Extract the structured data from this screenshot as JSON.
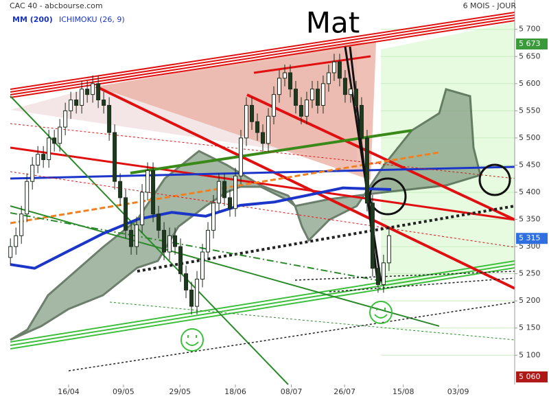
{
  "chart_data": {
    "type": "candlestick",
    "title": "CAC 40 - abcbourse.com",
    "period": "6 MOIS - JOUR",
    "annotation": "Mat",
    "indicators": [
      {
        "name": "MM (200)",
        "color": "#1a35c8"
      },
      {
        "name": "ICHIMOKU (26, 9)",
        "color": "#1a35c8"
      }
    ],
    "open": [
      5280,
      5300,
      5320,
      5360,
      5420,
      5450,
      5470,
      5460,
      5500,
      5490,
      5520,
      5550,
      5570,
      5560,
      5590,
      5580,
      5600,
      5570,
      5560,
      5510,
      5420,
      5390,
      5330,
      5300,
      5340,
      5400,
      5440,
      5360,
      5330,
      5290,
      5320,
      5300,
      5250,
      5220,
      5190,
      5240,
      5290,
      5330,
      5380,
      5420,
      5390,
      5370,
      5430,
      5500,
      5560,
      5530,
      5510,
      5490,
      5540,
      5580,
      5610,
      5620,
      5590,
      5560,
      5540,
      5570,
      5590,
      5560,
      5600,
      5620,
      5640,
      5610,
      5580,
      5590,
      5560,
      5500,
      5380,
      5260,
      5230,
      5270
    ],
    "high": [
      5315,
      5335,
      5375,
      5435,
      5465,
      5485,
      5485,
      5515,
      5515,
      5535,
      5565,
      5585,
      5585,
      5605,
      5605,
      5615,
      5615,
      5585,
      5575,
      5525,
      5435,
      5405,
      5345,
      5355,
      5415,
      5455,
      5455,
      5375,
      5345,
      5335,
      5335,
      5315,
      5265,
      5235,
      5255,
      5305,
      5345,
      5395,
      5435,
      5435,
      5405,
      5445,
      5515,
      5575,
      5575,
      5545,
      5525,
      5555,
      5595,
      5625,
      5635,
      5635,
      5605,
      5575,
      5585,
      5605,
      5605,
      5615,
      5635,
      5655,
      5655,
      5625,
      5605,
      5605,
      5575,
      5515,
      5395,
      5275,
      5285,
      5335
    ],
    "low": [
      5265,
      5285,
      5305,
      5345,
      5405,
      5435,
      5445,
      5445,
      5475,
      5475,
      5505,
      5535,
      5545,
      5545,
      5565,
      5565,
      5555,
      5545,
      5495,
      5405,
      5375,
      5315,
      5285,
      5285,
      5325,
      5385,
      5345,
      5315,
      5275,
      5275,
      5285,
      5235,
      5205,
      5175,
      5175,
      5225,
      5275,
      5315,
      5365,
      5375,
      5355,
      5355,
      5415,
      5485,
      5515,
      5495,
      5475,
      5475,
      5525,
      5565,
      5595,
      5575,
      5545,
      5525,
      5525,
      5555,
      5545,
      5545,
      5585,
      5605,
      5595,
      5565,
      5565,
      5545,
      5485,
      5365,
      5245,
      5215,
      5215,
      5255
    ],
    "close": [
      5300,
      5320,
      5360,
      5420,
      5450,
      5470,
      5460,
      5500,
      5490,
      5520,
      5550,
      5570,
      5560,
      5590,
      5580,
      5600,
      5570,
      5560,
      5510,
      5420,
      5390,
      5330,
      5300,
      5340,
      5400,
      5440,
      5360,
      5330,
      5290,
      5320,
      5300,
      5250,
      5220,
      5190,
      5240,
      5290,
      5330,
      5380,
      5420,
      5390,
      5370,
      5430,
      5500,
      5560,
      5530,
      5510,
      5490,
      5540,
      5580,
      5610,
      5620,
      5590,
      5560,
      5540,
      5570,
      5590,
      5560,
      5600,
      5620,
      5640,
      5610,
      5580,
      5590,
      5560,
      5500,
      5380,
      5260,
      5230,
      5270,
      5320
    ],
    "moving_average": {
      "x": [
        0,
        4.4,
        10.6,
        16.9,
        23.1,
        29.4,
        35.6,
        41.9,
        48.1,
        54.4,
        60.6,
        69.4
      ],
      "values": [
        5267,
        5260,
        5292,
        5324,
        5350,
        5363,
        5356,
        5376,
        5382,
        5395,
        5408,
        5405
      ]
    },
    "xlim": [
      -1.9,
      91.9
    ],
    "xticks": [
      {
        "value": 10.6,
        "label": "16/04"
      },
      {
        "value": 20.6,
        "label": "09/05"
      },
      {
        "value": 30.9,
        "label": "29/05"
      },
      {
        "value": 41,
        "label": "18/06"
      },
      {
        "value": 51.2,
        "label": "08/07"
      },
      {
        "value": 60.9,
        "label": "26/07"
      },
      {
        "value": 71.6,
        "label": "15/08"
      },
      {
        "value": 81.6,
        "label": "03/09"
      }
    ],
    "ylim": [
      5046,
      5754
    ],
    "yticks": [
      {
        "value": 5100,
        "label": "5 100"
      },
      {
        "value": 5150,
        "label": "5 150"
      },
      {
        "value": 5200,
        "label": "5 200"
      },
      {
        "value": 5250,
        "label": "5 250"
      },
      {
        "value": 5300,
        "label": "5 300"
      },
      {
        "value": 5350,
        "label": "5 350"
      },
      {
        "value": 5400,
        "label": "5 400"
      },
      {
        "value": 5450,
        "label": "5 450"
      },
      {
        "value": 5500,
        "label": "5 500"
      },
      {
        "value": 5550,
        "label": "5 550"
      },
      {
        "value": 5600,
        "label": "5 600"
      },
      {
        "value": 5650,
        "label": "5 650"
      },
      {
        "value": 5700,
        "label": "5 700"
      }
    ],
    "price_tags": [
      {
        "value": 5673,
        "label": "5 673",
        "color": "#3a9a3a"
      },
      {
        "value": 5315,
        "label": "5 315",
        "color": "#2f6fe0"
      },
      {
        "value": 5060,
        "label": "5 060",
        "color": "#b01818"
      }
    ]
  }
}
